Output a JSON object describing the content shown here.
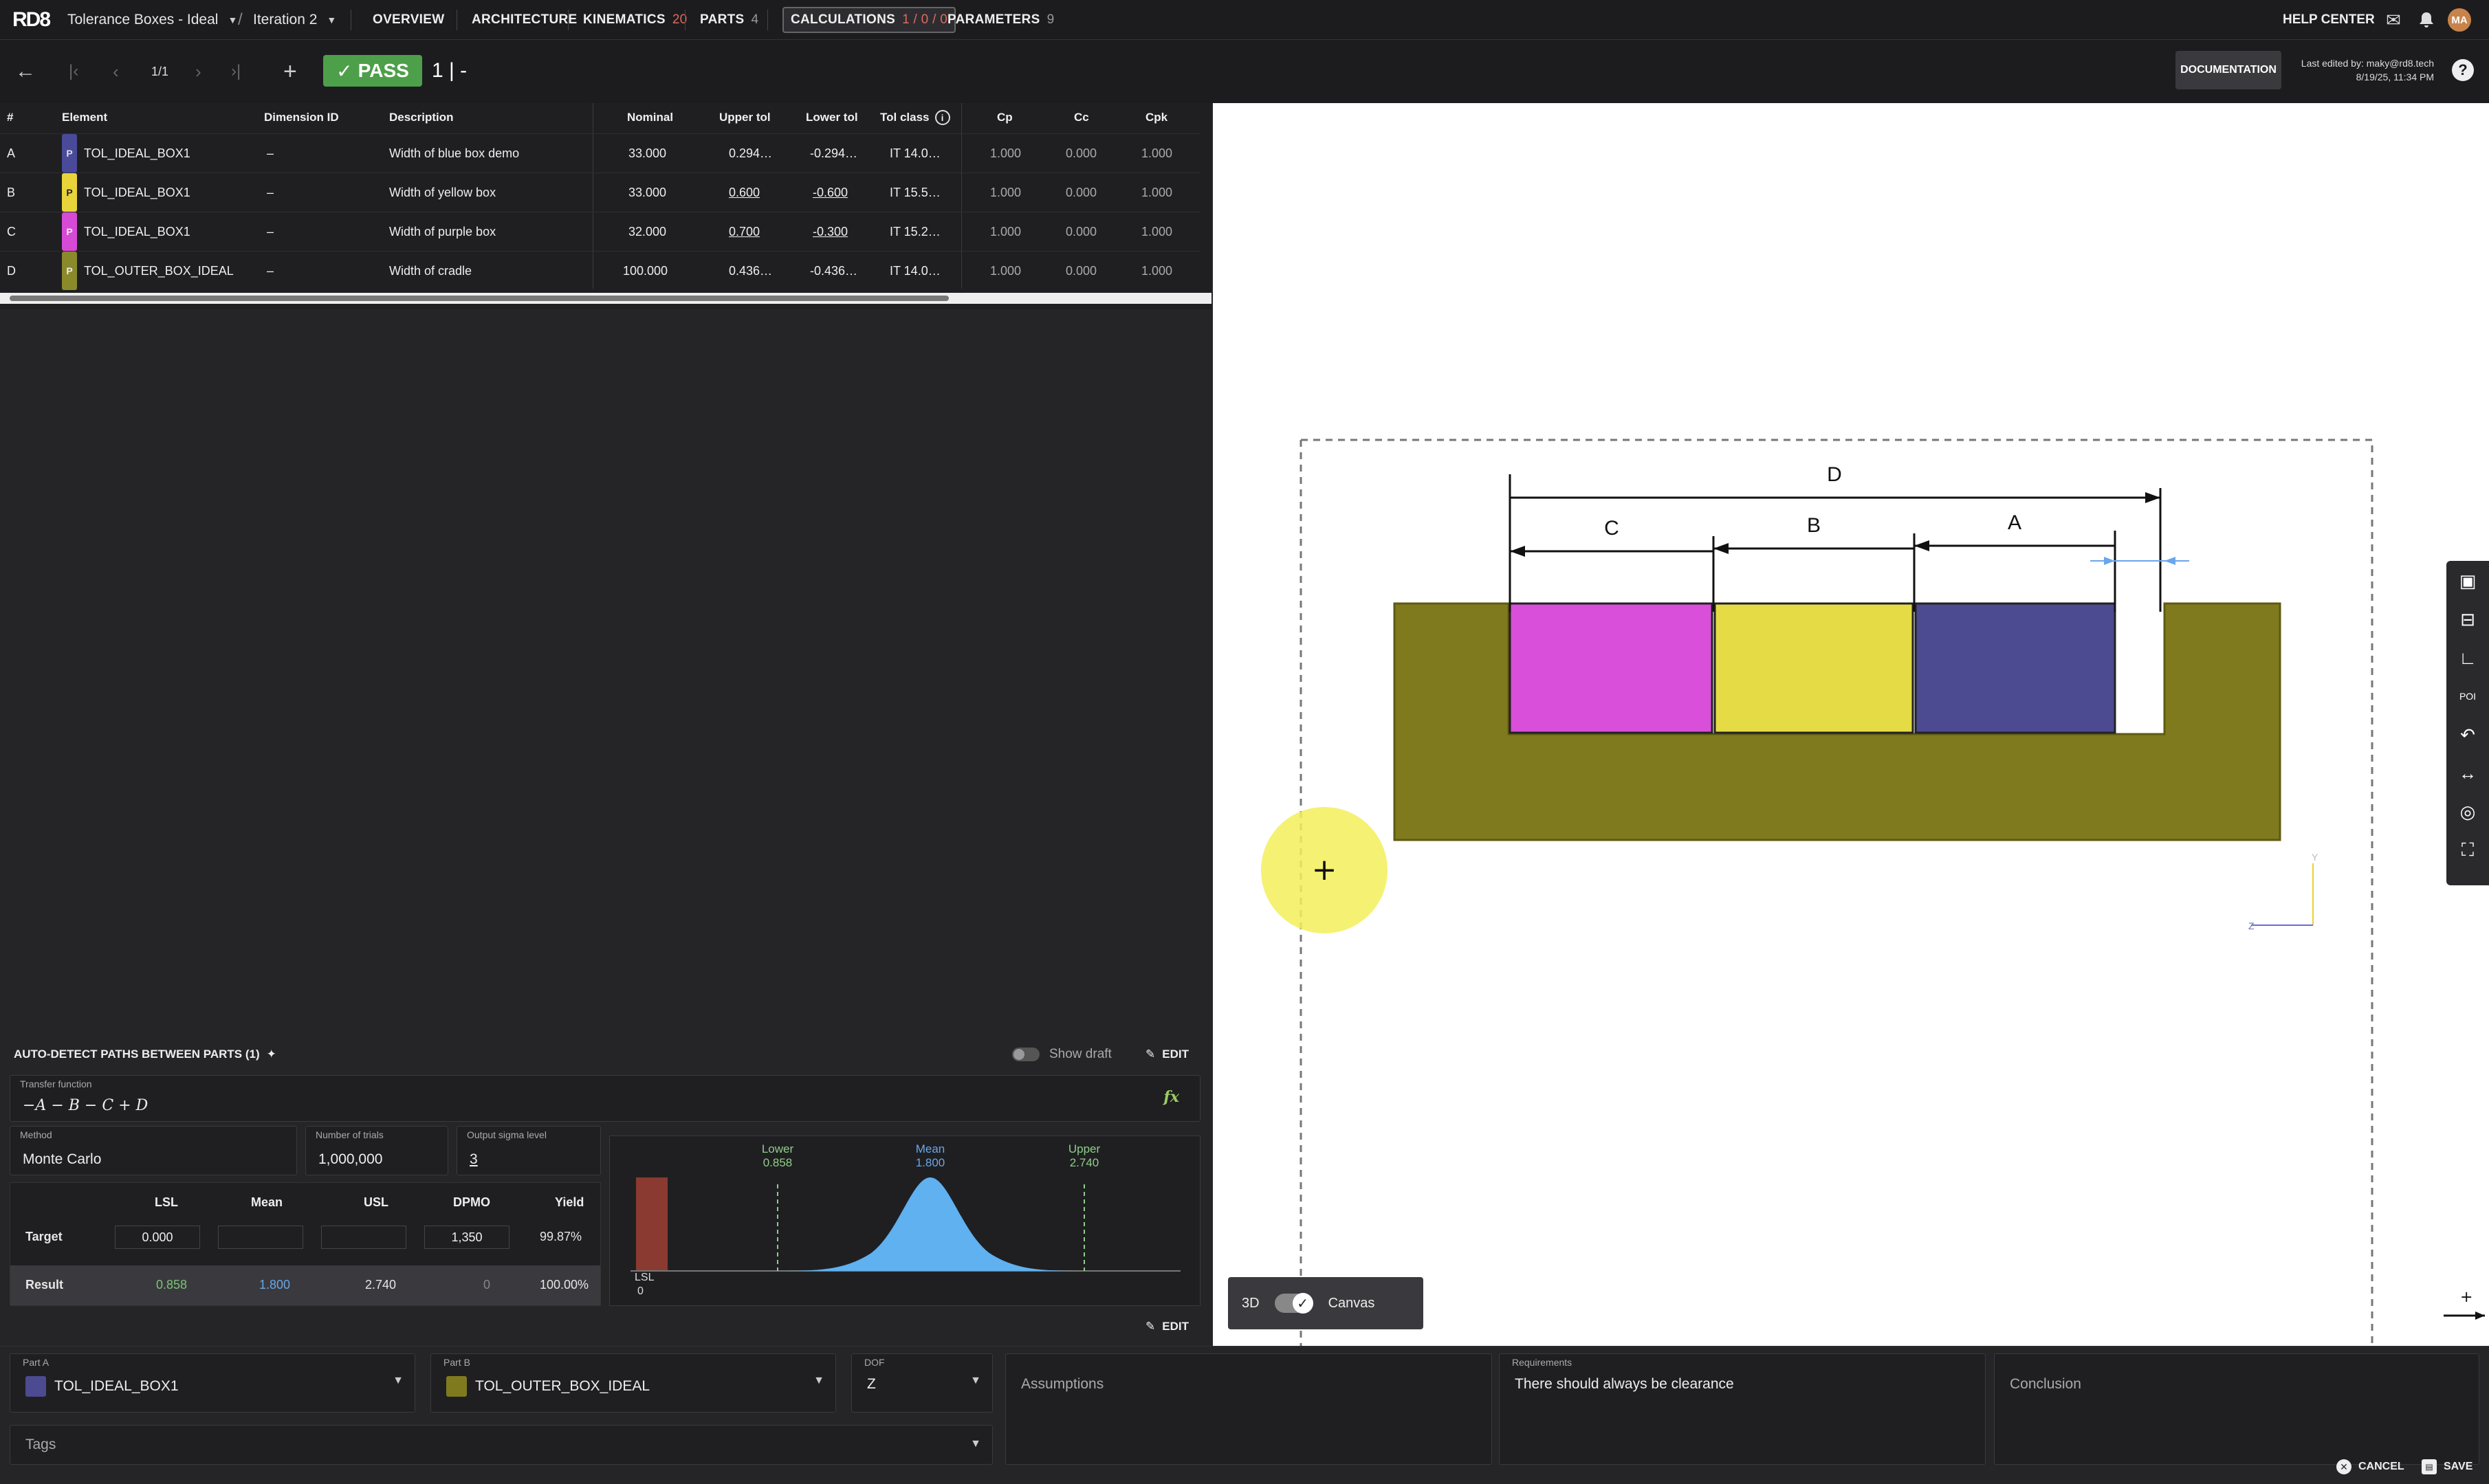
{
  "topbar": {
    "logo": "RD8",
    "project": "Tolerance Boxes - Ideal",
    "iteration": "Iteration 2",
    "tabs": [
      {
        "label": "OVERVIEW",
        "count": ""
      },
      {
        "label": "ARCHITECTURE",
        "count": ""
      },
      {
        "label": "KINEMATICS",
        "count": "20"
      },
      {
        "label": "PARTS",
        "count": "4"
      },
      {
        "label": "CALCULATIONS",
        "count": "1 / 0 / 0"
      },
      {
        "label": "PARAMETERS",
        "count": "9"
      }
    ],
    "help": "HELP CENTER",
    "avatar": "MA"
  },
  "toolbar": {
    "page": "1/1",
    "status": "PASS",
    "iteration_value": "1 | -",
    "documentation": "DOCUMENTATION",
    "last_edited_by": "Last edited by: maky@rd8.tech",
    "last_edited_at": "8/19/25, 11:34 PM"
  },
  "table": {
    "headers": [
      "#",
      "Element",
      "Dimension ID",
      "Description",
      "Nominal",
      "Upper tol",
      "Lower tol",
      "Tol class",
      "Cp",
      "Cc",
      "Cpk"
    ],
    "rows": [
      {
        "id": "A",
        "badge": "P",
        "badge_color": "#4a4a9a",
        "element": "TOL_IDEAL_BOX1",
        "dim": "–",
        "desc": "Width of blue box demo",
        "nominal": "33.000",
        "upper": "0.294…",
        "lower": "-0.294…",
        "tolclass": "IT 14.0…",
        "cp": "1.000",
        "cc": "0.000",
        "cpk": "1.000"
      },
      {
        "id": "B",
        "badge": "P",
        "badge_color": "#e8d43a",
        "element": "TOL_IDEAL_BOX1",
        "dim": "–",
        "desc": "Width of yellow box",
        "nominal": "33.000",
        "upper": "0.600",
        "lower": "-0.600",
        "tolclass": "IT 15.5…",
        "cp": "1.000",
        "cc": "0.000",
        "cpk": "1.000"
      },
      {
        "id": "C",
        "badge": "P",
        "badge_color": "#d64ad6",
        "element": "TOL_IDEAL_BOX1",
        "dim": "–",
        "desc": "Width of purple box",
        "nominal": "32.000",
        "upper": "0.700",
        "lower": "-0.300",
        "tolclass": "IT 15.2…",
        "cp": "1.000",
        "cc": "0.000",
        "cpk": "1.000"
      },
      {
        "id": "D",
        "badge": "P",
        "badge_color": "#8a8a2a",
        "element": "TOL_OUTER_BOX_IDEAL",
        "dim": "–",
        "desc": "Width of cradle",
        "nominal": "100.000",
        "upper": "0.436…",
        "lower": "-0.436…",
        "tolclass": "IT 14.0…",
        "cp": "1.000",
        "cc": "0.000",
        "cpk": "1.000"
      }
    ]
  },
  "analysis": {
    "autodetect": "AUTO-DETECT PATHS BETWEEN PARTS (1)",
    "show_draft": "Show draft",
    "edit": "EDIT",
    "transfer_label": "Transfer function",
    "transfer_value": "−A − B − C + D",
    "fx": "fx",
    "method_label": "Method",
    "method": "Monte Carlo",
    "trials_label": "Number of trials",
    "trials": "1,000,000",
    "sigma_label": "Output sigma level",
    "sigma": "3",
    "stats_headers": [
      "LSL",
      "Mean",
      "USL",
      "DPMO",
      "Yield"
    ],
    "target": {
      "label": "Target",
      "lsl": "0.000",
      "mean": "",
      "usl": "",
      "dpmo": "1,350",
      "yield": "99.87%"
    },
    "result": {
      "label": "Result",
      "lsl": "0.858",
      "mean": "1.800",
      "usl": "2.740",
      "dpmo": "0",
      "yield": "100.00%"
    },
    "histogram": {
      "lower_label": "Lower",
      "lower_value": "0.858",
      "mean_label": "Mean",
      "mean_value": "1.800",
      "upper_label": "Upper",
      "upper_value": "2.740",
      "lsl_label": "LSL",
      "lsl_value": "0"
    }
  },
  "viewer": {
    "labels": {
      "d": "D",
      "c": "C",
      "b": "B",
      "a": "A"
    },
    "axis_y": "Y",
    "axis_z": "Z",
    "toggle_left": "3D",
    "toggle_right": "Canvas",
    "colors": {
      "cradle": "#807a1e",
      "purple": "#d94fd9",
      "yellow": "#e5dc45",
      "blue": "#4c4a90"
    }
  },
  "bottom": {
    "part_a_label": "Part A",
    "part_a": "TOL_IDEAL_BOX1",
    "part_b_label": "Part B",
    "part_b": "TOL_OUTER_BOX_IDEAL",
    "dof_label": "DOF",
    "dof": "Z",
    "assumptions": "Assumptions",
    "requirements_label": "Requirements",
    "requirements": "There should always be clearance",
    "conclusion": "Conclusion",
    "tags": "Tags",
    "cancel": "CANCEL",
    "save": "SAVE"
  }
}
